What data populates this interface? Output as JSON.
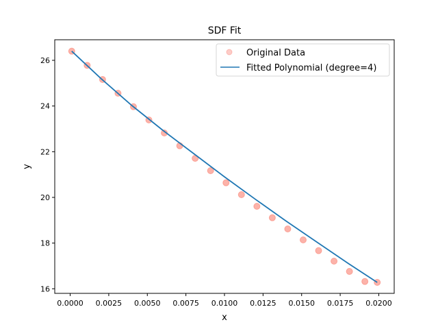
{
  "chart_data": {
    "type": "scatter",
    "title": "SDF Fit",
    "xlabel": "x",
    "ylabel": "y",
    "xlim": [
      -0.001,
      0.021
    ],
    "ylim": [
      15.8,
      26.9
    ],
    "xticks": [
      0.0,
      0.0025,
      0.005,
      0.0075,
      0.01,
      0.0125,
      0.015,
      0.0175,
      0.02
    ],
    "xtick_labels": [
      "0.0000",
      "0.0025",
      "0.0050",
      "0.0075",
      "0.0100",
      "0.0125",
      "0.0150",
      "0.0175",
      "0.0200"
    ],
    "yticks": [
      16,
      18,
      20,
      22,
      24,
      26
    ],
    "ytick_labels": [
      "16",
      "18",
      "20",
      "22",
      "24",
      "26"
    ],
    "grid": false,
    "legend_position": "top-right",
    "series": [
      {
        "name": "Original Data",
        "kind": "scatter",
        "color": "#fa8072",
        "x": [
          0.0001,
          0.0011,
          0.0021,
          0.0031,
          0.0041,
          0.0051,
          0.0061,
          0.0071,
          0.0081,
          0.0091,
          0.0101,
          0.0111,
          0.0121,
          0.0131,
          0.0141,
          0.0151,
          0.0161,
          0.0171,
          0.0181,
          0.0191,
          0.0199
        ],
        "y": [
          26.4,
          25.78,
          25.16,
          24.56,
          23.97,
          23.39,
          22.82,
          22.26,
          21.71,
          21.17,
          20.64,
          20.12,
          19.61,
          19.11,
          18.62,
          18.14,
          17.67,
          17.21,
          16.76,
          16.32,
          16.28
        ]
      },
      {
        "name": "Fitted Polynomial (degree=4)",
        "kind": "line",
        "color": "#1f77b4",
        "x": [
          0.0001,
          0.002,
          0.004,
          0.006,
          0.008,
          0.01,
          0.012,
          0.014,
          0.016,
          0.018,
          0.0199
        ],
        "y": [
          26.4,
          25.2,
          24.02,
          22.94,
          21.92,
          20.9,
          19.92,
          18.96,
          18.04,
          17.12,
          16.28
        ]
      }
    ]
  }
}
